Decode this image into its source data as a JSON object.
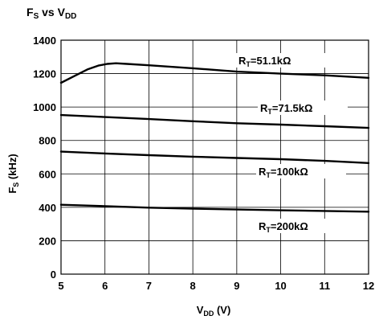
{
  "chart_data": {
    "type": "line",
    "title": {
      "main_1": "F",
      "sub_1": "S",
      "main_2": " vs V",
      "sub_2": "DD"
    },
    "xlabel": {
      "main": "V",
      "sub": "DD",
      "rest": " (V)"
    },
    "ylabel": {
      "main": "F",
      "sub": "S",
      "rest": " (kHz)"
    },
    "xlim": [
      5,
      12
    ],
    "ylim": [
      0,
      1400
    ],
    "x_ticks": [
      "5",
      "6",
      "7",
      "8",
      "9",
      "10",
      "11",
      "12"
    ],
    "y_ticks": [
      "0",
      "200",
      "400",
      "600",
      "800",
      "1000",
      "1200",
      "1400"
    ],
    "grid": true,
    "series": [
      {
        "name": {
          "main": "R",
          "sub": "T",
          "rest": "=51.1kΩ"
        },
        "x": [
          5.0,
          5.3,
          5.6,
          5.85,
          6.05,
          6.25,
          6.5,
          7.0,
          8.0,
          9.0,
          10.0,
          11.0,
          12.0
        ],
        "y": [
          1145,
          1185,
          1225,
          1248,
          1258,
          1262,
          1258,
          1250,
          1232,
          1212,
          1200,
          1190,
          1175
        ]
      },
      {
        "name": {
          "main": "R",
          "sub": "T",
          "rest": "=71.5kΩ"
        },
        "x": [
          5.0,
          6.0,
          7.0,
          8.0,
          9.0,
          10.0,
          11.0,
          12.0
        ],
        "y": [
          952,
          940,
          928,
          915,
          903,
          895,
          885,
          875
        ]
      },
      {
        "name": {
          "main": "R",
          "sub": "T",
          "rest": "=100kΩ"
        },
        "x": [
          5.0,
          6.0,
          7.0,
          8.0,
          9.0,
          10.0,
          11.0,
          12.0
        ],
        "y": [
          733,
          722,
          712,
          703,
          695,
          688,
          678,
          665
        ]
      },
      {
        "name": {
          "main": "R",
          "sub": "T",
          "rest": "=200kΩ"
        },
        "x": [
          5.0,
          6.0,
          7.0,
          8.0,
          9.0,
          10.0,
          11.0,
          12.0
        ],
        "y": [
          415,
          407,
          398,
          392,
          387,
          382,
          378,
          374
        ]
      }
    ]
  }
}
